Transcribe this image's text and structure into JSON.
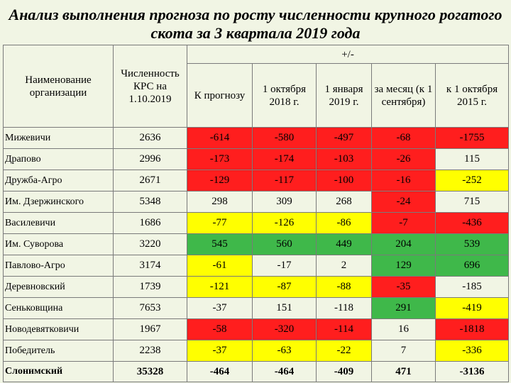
{
  "title": "Анализ выполнения прогноза по росту численности крупного рогатого скота за 3 квартала 2019 года",
  "header": {
    "col_org": "Наименование организации",
    "col_krs": "Численность КРС на 1.10.2019",
    "col_group": "+/-",
    "col_forecast": "К прогнозу",
    "col_oct2018": "1 октября 2018 г.",
    "col_jan2019": "1 января 2019 г.",
    "col_month": "за месяц (к 1 сентября)",
    "col_oct2015": "к 1 октября 2015 г."
  },
  "colors": {
    "red": "#ff1e1e",
    "yellow": "#ffff00",
    "green": "#3fb84a"
  },
  "rows": [
    {
      "name": "Мижевичи",
      "krs": "2636",
      "cells": [
        {
          "v": "-614",
          "c": "red"
        },
        {
          "v": "-580",
          "c": "red"
        },
        {
          "v": "-497",
          "c": "red"
        },
        {
          "v": "-68",
          "c": "red"
        },
        {
          "v": "-1755",
          "c": "red"
        }
      ]
    },
    {
      "name": "Драпово",
      "krs": "2996",
      "cells": [
        {
          "v": "-173",
          "c": "red"
        },
        {
          "v": "-174",
          "c": "red"
        },
        {
          "v": "-103",
          "c": "red"
        },
        {
          "v": "-26",
          "c": "red"
        },
        {
          "v": "115",
          "c": "none"
        }
      ]
    },
    {
      "name": "Дружба-Агро",
      "krs": "2671",
      "cells": [
        {
          "v": "-129",
          "c": "red"
        },
        {
          "v": "-117",
          "c": "red"
        },
        {
          "v": "-100",
          "c": "red"
        },
        {
          "v": "-16",
          "c": "red"
        },
        {
          "v": "-252",
          "c": "yellow"
        }
      ]
    },
    {
      "name": "Им. Дзержинского",
      "krs": "5348",
      "cells": [
        {
          "v": "298",
          "c": "none"
        },
        {
          "v": "309",
          "c": "none"
        },
        {
          "v": "268",
          "c": "none"
        },
        {
          "v": "-24",
          "c": "red"
        },
        {
          "v": "715",
          "c": "none"
        }
      ]
    },
    {
      "name": "Василевичи",
      "krs": "1686",
      "cells": [
        {
          "v": "-77",
          "c": "yellow"
        },
        {
          "v": "-126",
          "c": "yellow"
        },
        {
          "v": "-86",
          "c": "yellow"
        },
        {
          "v": "-7",
          "c": "red"
        },
        {
          "v": "-436",
          "c": "red"
        }
      ]
    },
    {
      "name": "Им. Суворова",
      "krs": "3220",
      "cells": [
        {
          "v": "545",
          "c": "green"
        },
        {
          "v": "560",
          "c": "green"
        },
        {
          "v": "449",
          "c": "green"
        },
        {
          "v": "204",
          "c": "green"
        },
        {
          "v": "539",
          "c": "green"
        }
      ]
    },
    {
      "name": "Павлово-Агро",
      "krs": "3174",
      "cells": [
        {
          "v": "-61",
          "c": "yellow"
        },
        {
          "v": "-17",
          "c": "none"
        },
        {
          "v": "2",
          "c": "none"
        },
        {
          "v": "129",
          "c": "green"
        },
        {
          "v": "696",
          "c": "green"
        }
      ]
    },
    {
      "name": "Деревновский",
      "krs": "1739",
      "cells": [
        {
          "v": "-121",
          "c": "yellow"
        },
        {
          "v": "-87",
          "c": "yellow"
        },
        {
          "v": "-88",
          "c": "yellow"
        },
        {
          "v": "-35",
          "c": "red"
        },
        {
          "v": "-185",
          "c": "none"
        }
      ]
    },
    {
      "name": "Сеньковщина",
      "krs": "7653",
      "cells": [
        {
          "v": "-37",
          "c": "none"
        },
        {
          "v": "151",
          "c": "none"
        },
        {
          "v": "-118",
          "c": "none"
        },
        {
          "v": "291",
          "c": "green"
        },
        {
          "v": "-419",
          "c": "yellow"
        }
      ]
    },
    {
      "name": "Новодевятковичи",
      "krs": "1967",
      "cells": [
        {
          "v": "-58",
          "c": "red"
        },
        {
          "v": "-320",
          "c": "red"
        },
        {
          "v": "-114",
          "c": "red"
        },
        {
          "v": "16",
          "c": "none"
        },
        {
          "v": "-1818",
          "c": "red"
        }
      ]
    },
    {
      "name": "Победитель",
      "krs": "2238",
      "cells": [
        {
          "v": "-37",
          "c": "yellow"
        },
        {
          "v": "-63",
          "c": "yellow"
        },
        {
          "v": "-22",
          "c": "yellow"
        },
        {
          "v": "7",
          "c": "none"
        },
        {
          "v": "-336",
          "c": "yellow"
        }
      ]
    }
  ],
  "total": {
    "name": "Слонимский",
    "krs": "35328",
    "cells": [
      {
        "v": "-464",
        "c": "none"
      },
      {
        "v": "-464",
        "c": "none"
      },
      {
        "v": "-409",
        "c": "none"
      },
      {
        "v": "471",
        "c": "none"
      },
      {
        "v": "-3136",
        "c": "none"
      }
    ]
  }
}
